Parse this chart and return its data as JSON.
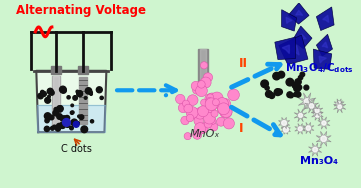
{
  "bg_color": "#cff5cf",
  "title_text": "Alternating Voltage",
  "title_color": "#ff0000",
  "title_fontsize": 8.5,
  "mnox_label": "MnOₓ",
  "mn3o4_label": "Mn₃O₄",
  "cdots_label": "C dots",
  "label_I": "I",
  "label_II": "II",
  "arrow_color": "#1199ee",
  "label_color": "#ff4400",
  "mn3o4_text_color": "#0000cc",
  "electrode_color": "#888888",
  "wire_color": "#111111",
  "pink_dot_color": "#ff88cc",
  "pink_dot_ec": "#dd55aa",
  "black_dot_color": "#111111",
  "blue_shape_color": "#0a0a99",
  "gray_star_color": "#bbbbbb",
  "gray_star_ec": "#888888"
}
